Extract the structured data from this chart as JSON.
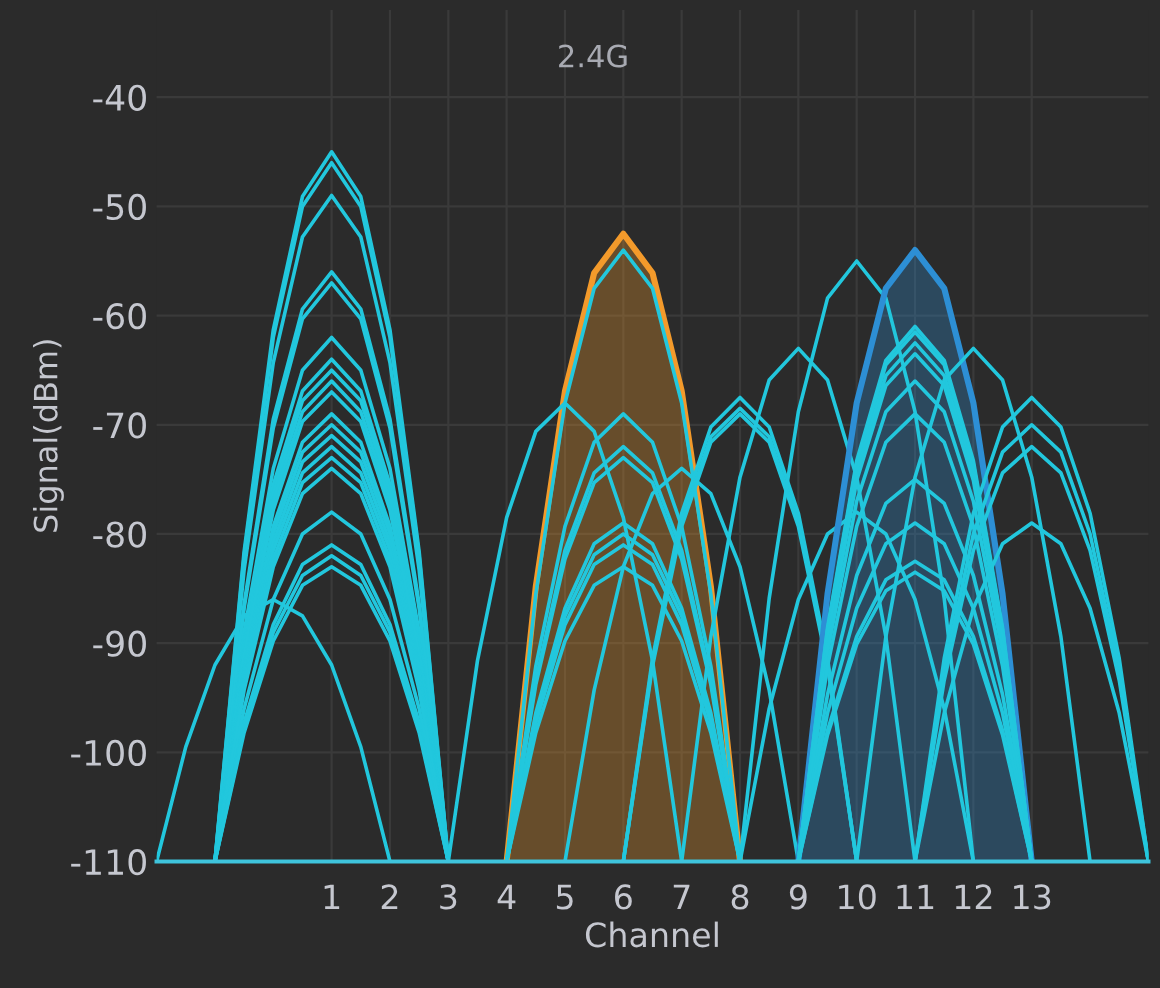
{
  "chart_data": {
    "type": "line",
    "xlabel": "Channel",
    "ylabel": "Signal(dBm)",
    "annotations": [
      "2.4G"
    ],
    "xlim": [
      -2,
      15
    ],
    "ylim": [
      -110,
      -32
    ],
    "xticks": [
      1,
      2,
      3,
      4,
      5,
      6,
      7,
      8,
      9,
      10,
      11,
      12,
      13
    ],
    "yticks": [
      -110,
      -100,
      -90,
      -80,
      -70,
      -60,
      -50,
      -40
    ],
    "grid": true,
    "legend": false,
    "series": [
      {
        "x": [
          -2,
          -1.5,
          -1,
          -0.5,
          0,
          0.5,
          1,
          1.5,
          2
        ],
        "values": [
          -110,
          -99.5,
          -92,
          -87.5,
          -86,
          -87.5,
          -92,
          -99.5,
          -110
        ],
        "color": "#22c7dd"
      },
      {
        "x": [
          -1,
          -0.5,
          0,
          0.5,
          1,
          1.5,
          2,
          2.5,
          3
        ],
        "values": [
          -110,
          -81.6,
          -61.3,
          -49.1,
          -45,
          -49.1,
          -61.3,
          -81.6,
          -110
        ],
        "color": "#22c7dd"
      },
      {
        "x": [
          -1,
          -0.5,
          0,
          0.5,
          1,
          1.5,
          2,
          2.5,
          3
        ],
        "values": [
          -110,
          -82,
          -62,
          -50,
          -46,
          -50,
          -62,
          -82,
          -110
        ],
        "color": "#22c7dd"
      },
      {
        "x": [
          -1,
          -0.5,
          0,
          0.5,
          1,
          1.5,
          2,
          2.5,
          3
        ],
        "values": [
          -110,
          -83.3,
          -64.3,
          -52.8,
          -49,
          -52.8,
          -64.3,
          -83.3,
          -110
        ],
        "color": "#22c7dd"
      },
      {
        "x": [
          -1,
          -0.5,
          0,
          0.5,
          1,
          1.5,
          2,
          2.5,
          3
        ],
        "values": [
          -110,
          -86.4,
          -69.5,
          -59.4,
          -56,
          -59.4,
          -69.5,
          -86.4,
          -110
        ],
        "color": "#22c7dd"
      },
      {
        "x": [
          -1,
          -0.5,
          0,
          0.5,
          1,
          1.5,
          2,
          2.5,
          3
        ],
        "values": [
          -110,
          -86.8,
          -70.3,
          -60.3,
          -57,
          -60.3,
          -70.3,
          -86.8,
          -110
        ],
        "color": "#22c7dd"
      },
      {
        "x": [
          -1,
          -0.5,
          0,
          0.5,
          1,
          1.5,
          2,
          2.5,
          3
        ],
        "values": [
          -110,
          -89,
          -74,
          -65,
          -62,
          -65,
          -74,
          -89,
          -110
        ],
        "color": "#22c7dd"
      },
      {
        "x": [
          -1,
          -0.5,
          0,
          0.5,
          1,
          1.5,
          2,
          2.5,
          3
        ],
        "values": [
          -110,
          -89.9,
          -75.5,
          -66.9,
          -64,
          -66.9,
          -75.5,
          -89.9,
          -110
        ],
        "color": "#22c7dd"
      },
      {
        "x": [
          -1,
          -0.5,
          0,
          0.5,
          1,
          1.5,
          2,
          2.5,
          3
        ],
        "values": [
          -110,
          -90.3,
          -76.3,
          -67.8,
          -65,
          -67.8,
          -76.3,
          -90.3,
          -110
        ],
        "color": "#22c7dd"
      },
      {
        "x": [
          -1,
          -0.5,
          0,
          0.5,
          1,
          1.5,
          2,
          2.5,
          3
        ],
        "values": [
          -110,
          -90.8,
          -77,
          -68.8,
          -66,
          -68.8,
          -77,
          -90.8,
          -110
        ],
        "color": "#22c7dd"
      },
      {
        "x": [
          -1,
          -0.5,
          0,
          0.5,
          1,
          1.5,
          2,
          2.5,
          3
        ],
        "values": [
          -110,
          -91.2,
          -77.8,
          -69.7,
          -67,
          -69.7,
          -77.8,
          -91.2,
          -110
        ],
        "color": "#22c7dd"
      },
      {
        "x": [
          -1,
          -0.5,
          0,
          0.5,
          1,
          1.5,
          2,
          2.5,
          3
        ],
        "values": [
          -110,
          -92.1,
          -79.3,
          -71.6,
          -69,
          -71.6,
          -79.3,
          -92.1,
          -110
        ],
        "color": "#22c7dd"
      },
      {
        "x": [
          -1,
          -0.5,
          0,
          0.5,
          1,
          1.5,
          2,
          2.5,
          3
        ],
        "values": [
          -110,
          -92.5,
          -80,
          -72.5,
          -70,
          -72.5,
          -80,
          -92.5,
          -110
        ],
        "color": "#22c7dd"
      },
      {
        "x": [
          -1,
          -0.5,
          0,
          0.5,
          1,
          1.5,
          2,
          2.5,
          3
        ],
        "values": [
          -110,
          -92.9,
          -80.8,
          -73.4,
          -71,
          -73.4,
          -80.8,
          -92.9,
          -110
        ],
        "color": "#22c7dd"
      },
      {
        "x": [
          -1,
          -0.5,
          0,
          0.5,
          1,
          1.5,
          2,
          2.5,
          3
        ],
        "values": [
          -110,
          -93.4,
          -81.5,
          -74.4,
          -72,
          -74.4,
          -81.5,
          -93.4,
          -110
        ],
        "color": "#22c7dd"
      },
      {
        "x": [
          -1,
          -0.5,
          0,
          0.5,
          1,
          1.5,
          2,
          2.5,
          3
        ],
        "values": [
          -110,
          -93.8,
          -82.3,
          -75.3,
          -73,
          -75.3,
          -82.3,
          -93.8,
          -110
        ],
        "color": "#22c7dd"
      },
      {
        "x": [
          -1,
          -0.5,
          0,
          0.5,
          1,
          1.5,
          2,
          2.5,
          3
        ],
        "values": [
          -110,
          -94.3,
          -83,
          -76.3,
          -74,
          -76.3,
          -83,
          -94.3,
          -110
        ],
        "color": "#22c7dd"
      },
      {
        "x": [
          -1,
          -0.5,
          0,
          0.5,
          1,
          1.5,
          2,
          2.5,
          3
        ],
        "values": [
          -110,
          -96,
          -86,
          -80,
          -78,
          -80,
          -86,
          -96,
          -110
        ],
        "color": "#22c7dd"
      },
      {
        "x": [
          -1,
          -0.5,
          0,
          0.5,
          1,
          1.5,
          2,
          2.5,
          3
        ],
        "values": [
          -110,
          -97.3,
          -88.3,
          -82.8,
          -81,
          -82.8,
          -88.3,
          -97.3,
          -110
        ],
        "color": "#22c7dd"
      },
      {
        "x": [
          -1,
          -0.5,
          0,
          0.5,
          1,
          1.5,
          2,
          2.5,
          3
        ],
        "values": [
          -110,
          -97.8,
          -89,
          -83.8,
          -82,
          -83.8,
          -89,
          -97.8,
          -110
        ],
        "color": "#22c7dd"
      },
      {
        "x": [
          -1,
          -0.5,
          0,
          0.5,
          1,
          1.5,
          2,
          2.5,
          3
        ],
        "values": [
          -110,
          -98.2,
          -89.8,
          -84.7,
          -83,
          -84.7,
          -89.8,
          -98.2,
          -110
        ],
        "color": "#22c7dd"
      },
      {
        "type": "area",
        "x": [
          4,
          4.5,
          5,
          5.5,
          6,
          6.5,
          7,
          7.5,
          8
        ],
        "values": [
          -110,
          -84.8,
          -66.9,
          -56.1,
          -52.5,
          -56.1,
          -66.9,
          -84.8,
          -110
        ],
        "color": "#f39a2b"
      },
      {
        "x": [
          4,
          4.5,
          5,
          5.5,
          6,
          6.5,
          7,
          7.5,
          8
        ],
        "values": [
          -110,
          -85.5,
          -68,
          -57.5,
          -54,
          -57.5,
          -68,
          -85.5,
          -110
        ],
        "color": "#22c7dd"
      },
      {
        "x": [
          4,
          4.5,
          5,
          5.5,
          6,
          6.5,
          7,
          7.5,
          8
        ],
        "values": [
          -110,
          -92.1,
          -79.3,
          -71.6,
          -69,
          -71.6,
          -79.3,
          -92.1,
          -110
        ],
        "color": "#22c7dd"
      },
      {
        "x": [
          4,
          4.5,
          5,
          5.5,
          6,
          6.5,
          7,
          7.5,
          8
        ],
        "values": [
          -110,
          -93.4,
          -81.5,
          -74.4,
          -72,
          -74.4,
          -81.5,
          -93.4,
          -110
        ],
        "color": "#22c7dd"
      },
      {
        "x": [
          4,
          4.5,
          5,
          5.5,
          6,
          6.5,
          7,
          7.5,
          8
        ],
        "values": [
          -110,
          -93.8,
          -82.3,
          -75.3,
          -73,
          -75.3,
          -82.3,
          -93.8,
          -110
        ],
        "color": "#22c7dd"
      },
      {
        "x": [
          4,
          4.5,
          5,
          5.5,
          6,
          6.5,
          7,
          7.5,
          8
        ],
        "values": [
          -110,
          -96.4,
          -86.8,
          -80.9,
          -79,
          -80.9,
          -86.8,
          -96.4,
          -110
        ],
        "color": "#22c7dd"
      },
      {
        "x": [
          4,
          4.5,
          5,
          5.5,
          6,
          6.5,
          7,
          7.5,
          8
        ],
        "values": [
          -110,
          -96.9,
          -87.5,
          -81.9,
          -80,
          -81.9,
          -87.5,
          -96.9,
          -110
        ],
        "color": "#22c7dd"
      },
      {
        "x": [
          4,
          4.5,
          5,
          5.5,
          6,
          6.5,
          7,
          7.5,
          8
        ],
        "values": [
          -110,
          -97.3,
          -88.3,
          -82.8,
          -81,
          -82.8,
          -88.3,
          -97.3,
          -110
        ],
        "color": "#22c7dd"
      },
      {
        "x": [
          4,
          4.5,
          5,
          5.5,
          6,
          6.5,
          7,
          7.5,
          8
        ],
        "values": [
          -110,
          -98.2,
          -89.8,
          -84.7,
          -83,
          -84.7,
          -89.8,
          -98.2,
          -110
        ],
        "color": "#22c7dd"
      },
      {
        "x": [
          3,
          3.5,
          4,
          4.5,
          5,
          5.5,
          6,
          6.5,
          7
        ],
        "values": [
          -110,
          -91.6,
          -78.5,
          -70.6,
          -68,
          -70.6,
          -78.5,
          -91.6,
          -110
        ],
        "color": "#22c7dd"
      },
      {
        "x": [
          5,
          5.5,
          6,
          6.5,
          7,
          7.5,
          8,
          8.5,
          9
        ],
        "values": [
          -110,
          -94.3,
          -83,
          -76.3,
          -74,
          -76.3,
          -83,
          -94.3,
          -110
        ],
        "color": "#22c7dd"
      },
      {
        "x": [
          6,
          6.5,
          7,
          7.5,
          8,
          8.5,
          9,
          9.5,
          10
        ],
        "values": [
          -110,
          -91.4,
          -78.1,
          -70.2,
          -67.5,
          -70.2,
          -78.1,
          -91.4,
          -110
        ],
        "color": "#22c7dd"
      },
      {
        "x": [
          6,
          6.5,
          7,
          7.5,
          8,
          8.5,
          9,
          9.5,
          10
        ],
        "values": [
          -110,
          -91.8,
          -78.9,
          -71.1,
          -68.5,
          -71.1,
          -78.9,
          -91.8,
          -110
        ],
        "color": "#22c7dd"
      },
      {
        "x": [
          6,
          6.5,
          7,
          7.5,
          8,
          8.5,
          9,
          9.5,
          10
        ],
        "values": [
          -110,
          -92.1,
          -79.3,
          -71.6,
          -69,
          -71.6,
          -79.3,
          -92.1,
          -110
        ],
        "color": "#22c7dd"
      },
      {
        "x": [
          7,
          7.5,
          8,
          8.5,
          9,
          9.5,
          10,
          10.5,
          11
        ],
        "values": [
          -110,
          -89.4,
          -74.8,
          -65.9,
          -63,
          -65.9,
          -74.8,
          -89.4,
          -110
        ],
        "color": "#22c7dd"
      },
      {
        "x": [
          8,
          8.5,
          9,
          9.5,
          10,
          10.5,
          11,
          11.5,
          12
        ],
        "values": [
          -110,
          -85.9,
          -68.8,
          -58.4,
          -55,
          -58.4,
          -68.8,
          -85.9,
          -110
        ],
        "color": "#22c7dd"
      },
      {
        "x": [
          8,
          8.5,
          9,
          9.5,
          10,
          10.5,
          11,
          11.5,
          12
        ],
        "values": [
          -110,
          -96,
          -86,
          -80,
          -78,
          -80,
          -86,
          -96,
          -110
        ],
        "color": "#22c7dd"
      },
      {
        "type": "area",
        "x": [
          9,
          9.5,
          10,
          10.5,
          11,
          11.5,
          12,
          12.5,
          13
        ],
        "values": [
          -110,
          -85.5,
          -68,
          -57.5,
          -54,
          -57.5,
          -68,
          -85.5,
          -110
        ],
        "color": "#2d8fd5"
      },
      {
        "x": [
          9,
          9.5,
          10,
          10.5,
          11,
          11.5,
          12,
          12.5,
          13
        ],
        "values": [
          -110,
          -88.6,
          -73.3,
          -64.1,
          -61,
          -64.1,
          -73.3,
          -88.6,
          -110
        ],
        "color": "#22c7dd"
      },
      {
        "x": [
          9,
          9.5,
          10,
          10.5,
          11,
          11.5,
          12,
          12.5,
          13
        ],
        "values": [
          -110,
          -88.8,
          -73.6,
          -64.5,
          -61.5,
          -64.5,
          -73.6,
          -88.8,
          -110
        ],
        "color": "#22c7dd"
      },
      {
        "x": [
          9,
          9.5,
          10,
          10.5,
          11,
          11.5,
          12,
          12.5,
          13
        ],
        "values": [
          -110,
          -89.2,
          -74.4,
          -65.5,
          -62.5,
          -65.5,
          -74.4,
          -89.2,
          -110
        ],
        "color": "#22c7dd"
      },
      {
        "x": [
          9,
          9.5,
          10,
          10.5,
          11,
          11.5,
          12,
          12.5,
          13
        ],
        "values": [
          -110,
          -89.7,
          -75.1,
          -66.4,
          -63.5,
          -66.4,
          -75.1,
          -89.7,
          -110
        ],
        "color": "#22c7dd"
      },
      {
        "x": [
          9,
          9.5,
          10,
          10.5,
          11,
          11.5,
          12,
          12.5,
          13
        ],
        "values": [
          -110,
          -90.8,
          -77,
          -68.8,
          -66,
          -68.8,
          -77,
          -90.8,
          -110
        ],
        "color": "#22c7dd"
      },
      {
        "x": [
          9,
          9.5,
          10,
          10.5,
          11,
          11.5,
          12,
          12.5,
          13
        ],
        "values": [
          -110,
          -92.1,
          -79.3,
          -71.6,
          -69,
          -71.6,
          -79.3,
          -92.1,
          -110
        ],
        "color": "#22c7dd"
      },
      {
        "x": [
          9,
          9.5,
          10,
          10.5,
          11,
          11.5,
          12,
          12.5,
          13
        ],
        "values": [
          -110,
          -94.7,
          -83.8,
          -77.2,
          -75,
          -77.2,
          -83.8,
          -94.7,
          -110
        ],
        "color": "#22c7dd"
      },
      {
        "x": [
          9,
          9.5,
          10,
          10.5,
          11,
          11.5,
          12,
          12.5,
          13
        ],
        "values": [
          -110,
          -96.4,
          -86.8,
          -80.9,
          -79,
          -80.9,
          -86.8,
          -96.4,
          -110
        ],
        "color": "#22c7dd"
      },
      {
        "x": [
          9,
          9.5,
          10,
          10.5,
          11,
          11.5,
          12,
          12.5,
          13
        ],
        "values": [
          -110,
          -98,
          -89.4,
          -84.2,
          -82.5,
          -84.2,
          -89.4,
          -98,
          -110
        ],
        "color": "#22c7dd"
      },
      {
        "x": [
          9,
          9.5,
          10,
          10.5,
          11,
          11.5,
          12,
          12.5,
          13
        ],
        "values": [
          -110,
          -98.4,
          -90.1,
          -85.2,
          -83.5,
          -85.2,
          -90.1,
          -98.4,
          -110
        ],
        "color": "#22c7dd"
      },
      {
        "x": [
          10,
          10.5,
          11,
          11.5,
          12,
          12.5,
          13,
          13.5,
          14
        ],
        "values": [
          -110,
          -89.4,
          -74.8,
          -65.9,
          -63,
          -65.9,
          -74.8,
          -89.4,
          -110
        ],
        "color": "#22c7dd"
      },
      {
        "x": [
          11,
          11.5,
          12,
          12.5,
          13,
          13.5,
          14,
          14.5,
          15
        ],
        "values": [
          -110,
          -91.4,
          -78.1,
          -70.2,
          -67.5,
          -70.2,
          -78.1,
          -91.4,
          -110
        ],
        "color": "#22c7dd"
      },
      {
        "x": [
          11,
          11.5,
          12,
          12.5,
          13,
          13.5,
          14,
          14.5,
          15
        ],
        "values": [
          -110,
          -92.5,
          -80,
          -72.5,
          -70,
          -72.5,
          -80,
          -92.5,
          -110
        ],
        "color": "#22c7dd"
      },
      {
        "x": [
          11,
          11.5,
          12,
          12.5,
          13,
          13.5,
          14,
          14.5,
          15
        ],
        "values": [
          -110,
          -93.4,
          -81.5,
          -74.4,
          -72,
          -74.4,
          -81.5,
          -93.4,
          -110
        ],
        "color": "#22c7dd"
      },
      {
        "x": [
          11,
          11.5,
          12,
          12.5,
          13,
          13.5,
          14,
          14.5,
          15
        ],
        "values": [
          -110,
          -96.4,
          -86.8,
          -80.9,
          -79,
          -80.9,
          -86.8,
          -96.4,
          -110
        ],
        "color": "#22c7dd"
      }
    ]
  }
}
